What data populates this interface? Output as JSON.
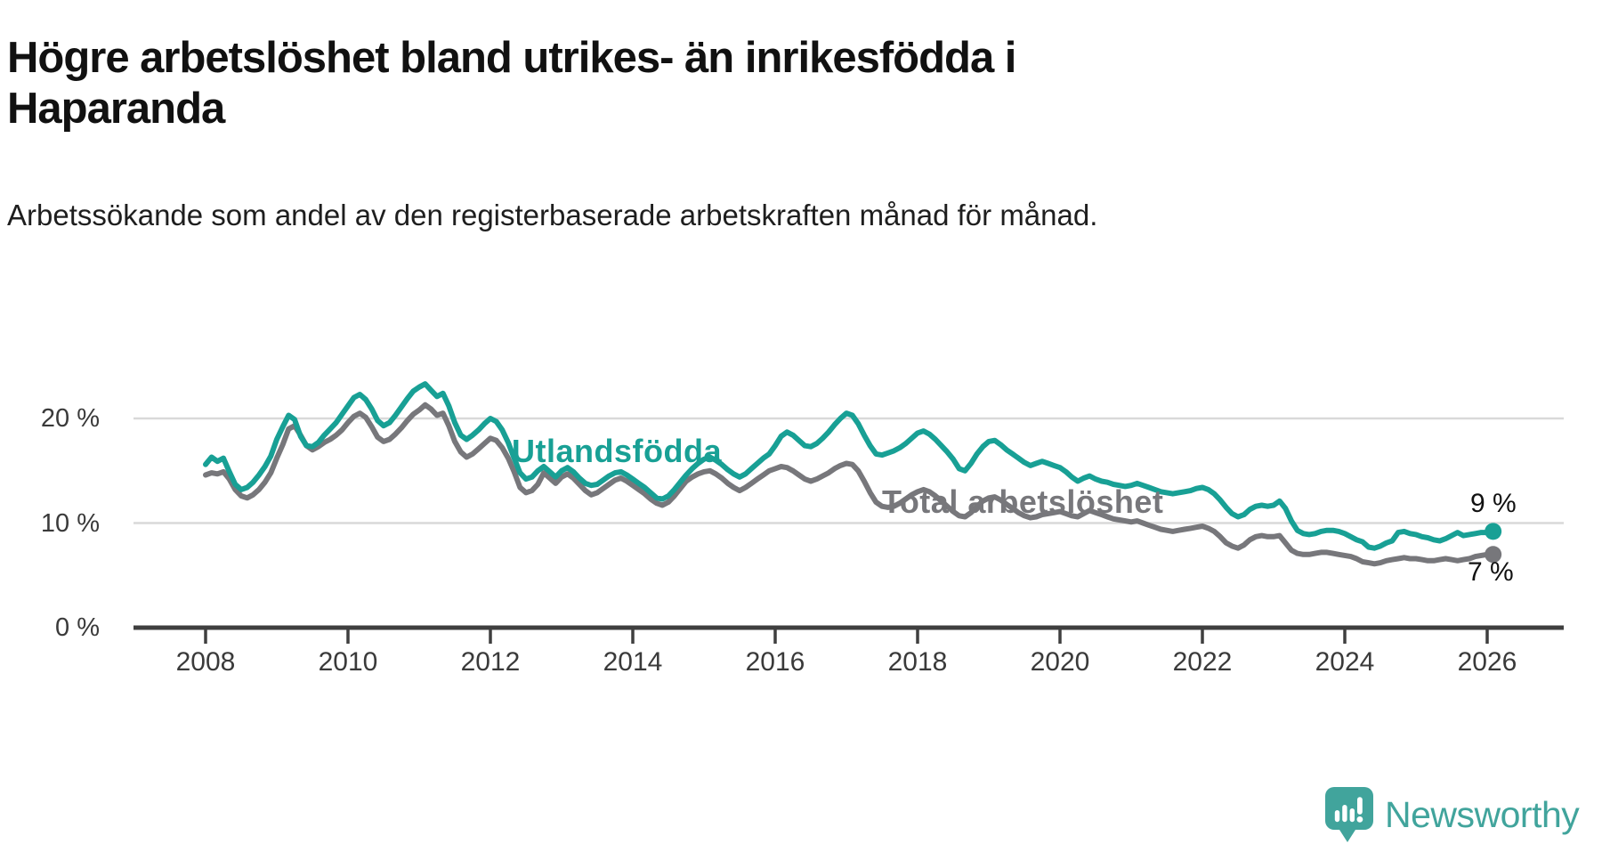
{
  "title": "Högre arbetslöshet bland utrikes- än inrikesfödda i Haparanda",
  "subtitle": "Arbetssökande som andel av den registerbaserade arbetskraften månad för månad.",
  "branding": {
    "logo_text": "Newsworthy",
    "logo_icon": "newsworthy-speech-bubble-chart-icon",
    "logo_color": "#41a49c"
  },
  "chart_data": {
    "type": "line",
    "title": "Högre arbetslöshet bland utrikes- än inrikesfödda i Haparanda",
    "xlabel": "",
    "ylabel": "Arbetssökande som andel av den registerbaserade arbetskraften",
    "x_unit": "month",
    "x_start_year": 2008,
    "x_end": "2026-02",
    "x_ticks": [
      2008,
      2010,
      2012,
      2014,
      2016,
      2018,
      2020,
      2022,
      2024,
      2026
    ],
    "y_ticks": [
      {
        "value": 0,
        "label": "0 %"
      },
      {
        "value": 10,
        "label": "10 %"
      },
      {
        "value": 20,
        "label": "20 %"
      }
    ],
    "ylim": [
      0,
      30
    ],
    "grid": "horizontal",
    "grid_color": "#d9d9d9",
    "axis_color": "#3f3f3f",
    "legend": "inline-labels",
    "series": [
      {
        "name": "Utlandsfödda",
        "color": "#18a095",
        "end_label": "9 %",
        "end_value": 9,
        "values": [
          15.6,
          16.3,
          15.9,
          16.2,
          14.9,
          13.7,
          13.2,
          13.4,
          13.9,
          14.6,
          15.4,
          16.4,
          18.0,
          19.2,
          20.3,
          19.9,
          18.3,
          17.4,
          17.3,
          17.7,
          18.4,
          19.0,
          19.6,
          20.4,
          21.2,
          22.0,
          22.3,
          21.8,
          20.9,
          19.8,
          19.3,
          19.6,
          20.3,
          21.1,
          21.9,
          22.6,
          23.0,
          23.3,
          22.7,
          22.1,
          22.4,
          21.2,
          19.6,
          18.4,
          18.0,
          18.4,
          18.9,
          19.5,
          20.0,
          19.7,
          18.9,
          17.7,
          16.2,
          14.8,
          14.2,
          14.4,
          15.0,
          15.4,
          14.9,
          14.4,
          15.0,
          15.3,
          14.9,
          14.3,
          13.8,
          13.6,
          13.7,
          14.1,
          14.5,
          14.8,
          14.9,
          14.6,
          14.2,
          13.8,
          13.4,
          12.9,
          12.4,
          12.3,
          12.6,
          13.2,
          13.9,
          14.6,
          15.2,
          15.7,
          16.1,
          16.3,
          16.0,
          15.6,
          15.1,
          14.7,
          14.4,
          14.7,
          15.2,
          15.7,
          16.2,
          16.6,
          17.4,
          18.3,
          18.7,
          18.4,
          17.9,
          17.4,
          17.3,
          17.6,
          18.1,
          18.7,
          19.4,
          20.0,
          20.5,
          20.3,
          19.5,
          18.4,
          17.4,
          16.6,
          16.5,
          16.7,
          16.9,
          17.2,
          17.6,
          18.1,
          18.6,
          18.8,
          18.5,
          18.0,
          17.4,
          16.8,
          16.1,
          15.2,
          15.0,
          15.7,
          16.6,
          17.3,
          17.8,
          17.9,
          17.5,
          17.0,
          16.6,
          16.2,
          15.8,
          15.5,
          15.7,
          15.9,
          15.7,
          15.5,
          15.3,
          14.9,
          14.4,
          14.0,
          14.3,
          14.5,
          14.2,
          14.0,
          13.9,
          13.7,
          13.6,
          13.5,
          13.6,
          13.8,
          13.6,
          13.4,
          13.2,
          13.0,
          12.9,
          12.8,
          12.9,
          13.0,
          13.1,
          13.3,
          13.4,
          13.2,
          12.8,
          12.2,
          11.5,
          10.9,
          10.6,
          10.8,
          11.3,
          11.6,
          11.7,
          11.6,
          11.7,
          12.1,
          11.4,
          10.2,
          9.3,
          9.0,
          8.9,
          9.0,
          9.2,
          9.3,
          9.3,
          9.2,
          9.0,
          8.7,
          8.4,
          8.2,
          7.7,
          7.6,
          7.8,
          8.1,
          8.3,
          9.1,
          9.2,
          9.0,
          8.9,
          8.7,
          8.6,
          8.4,
          8.3,
          8.5,
          8.8,
          9.1,
          8.8,
          8.9,
          9.0,
          9.1,
          9.1,
          9.2
        ]
      },
      {
        "name": "Total arbetslöshet",
        "color": "#77777b",
        "end_label": "7 %",
        "end_value": 7,
        "values": [
          14.6,
          14.8,
          14.7,
          14.9,
          14.2,
          13.2,
          12.6,
          12.4,
          12.7,
          13.2,
          13.9,
          14.8,
          16.2,
          17.5,
          19.0,
          19.3,
          18.4,
          17.4,
          17.0,
          17.3,
          17.7,
          18.0,
          18.4,
          18.9,
          19.6,
          20.2,
          20.5,
          20.1,
          19.2,
          18.2,
          17.8,
          18.0,
          18.5,
          19.1,
          19.8,
          20.4,
          20.8,
          21.3,
          20.9,
          20.3,
          20.5,
          19.3,
          17.8,
          16.8,
          16.3,
          16.6,
          17.1,
          17.6,
          18.1,
          17.9,
          17.2,
          16.2,
          14.9,
          13.4,
          12.9,
          13.1,
          13.7,
          14.8,
          14.3,
          13.8,
          14.4,
          14.7,
          14.3,
          13.7,
          13.1,
          12.7,
          12.9,
          13.3,
          13.7,
          14.1,
          14.3,
          14.0,
          13.6,
          13.2,
          12.8,
          12.3,
          11.9,
          11.7,
          12.0,
          12.6,
          13.3,
          14.0,
          14.4,
          14.7,
          14.9,
          15.0,
          14.7,
          14.3,
          13.8,
          13.4,
          13.1,
          13.4,
          13.8,
          14.2,
          14.6,
          15.0,
          15.2,
          15.4,
          15.3,
          15.0,
          14.6,
          14.2,
          14.0,
          14.2,
          14.5,
          14.8,
          15.2,
          15.5,
          15.7,
          15.6,
          15.0,
          14.0,
          12.9,
          12.0,
          11.6,
          11.5,
          11.6,
          11.9,
          12.3,
          12.7,
          13.0,
          13.2,
          13.0,
          12.6,
          12.1,
          11.6,
          11.1,
          10.7,
          10.6,
          11.0,
          11.6,
          12.1,
          12.4,
          12.5,
          12.2,
          11.8,
          11.4,
          11.0,
          10.7,
          10.5,
          10.6,
          10.8,
          10.9,
          11.0,
          11.1,
          10.9,
          10.7,
          10.6,
          10.9,
          11.2,
          11.0,
          10.8,
          10.6,
          10.4,
          10.3,
          10.2,
          10.1,
          10.2,
          10.0,
          9.8,
          9.6,
          9.4,
          9.3,
          9.2,
          9.3,
          9.4,
          9.5,
          9.6,
          9.7,
          9.5,
          9.2,
          8.7,
          8.1,
          7.8,
          7.6,
          7.9,
          8.4,
          8.7,
          8.8,
          8.7,
          8.7,
          8.8,
          8.1,
          7.4,
          7.1,
          7.0,
          7.0,
          7.1,
          7.2,
          7.2,
          7.1,
          7.0,
          6.9,
          6.8,
          6.6,
          6.3,
          6.2,
          6.1,
          6.2,
          6.4,
          6.5,
          6.6,
          6.7,
          6.6,
          6.6,
          6.5,
          6.4,
          6.4,
          6.5,
          6.6,
          6.5,
          6.4,
          6.5,
          6.6,
          6.8,
          6.9,
          7.0,
          7.0
        ]
      }
    ]
  }
}
